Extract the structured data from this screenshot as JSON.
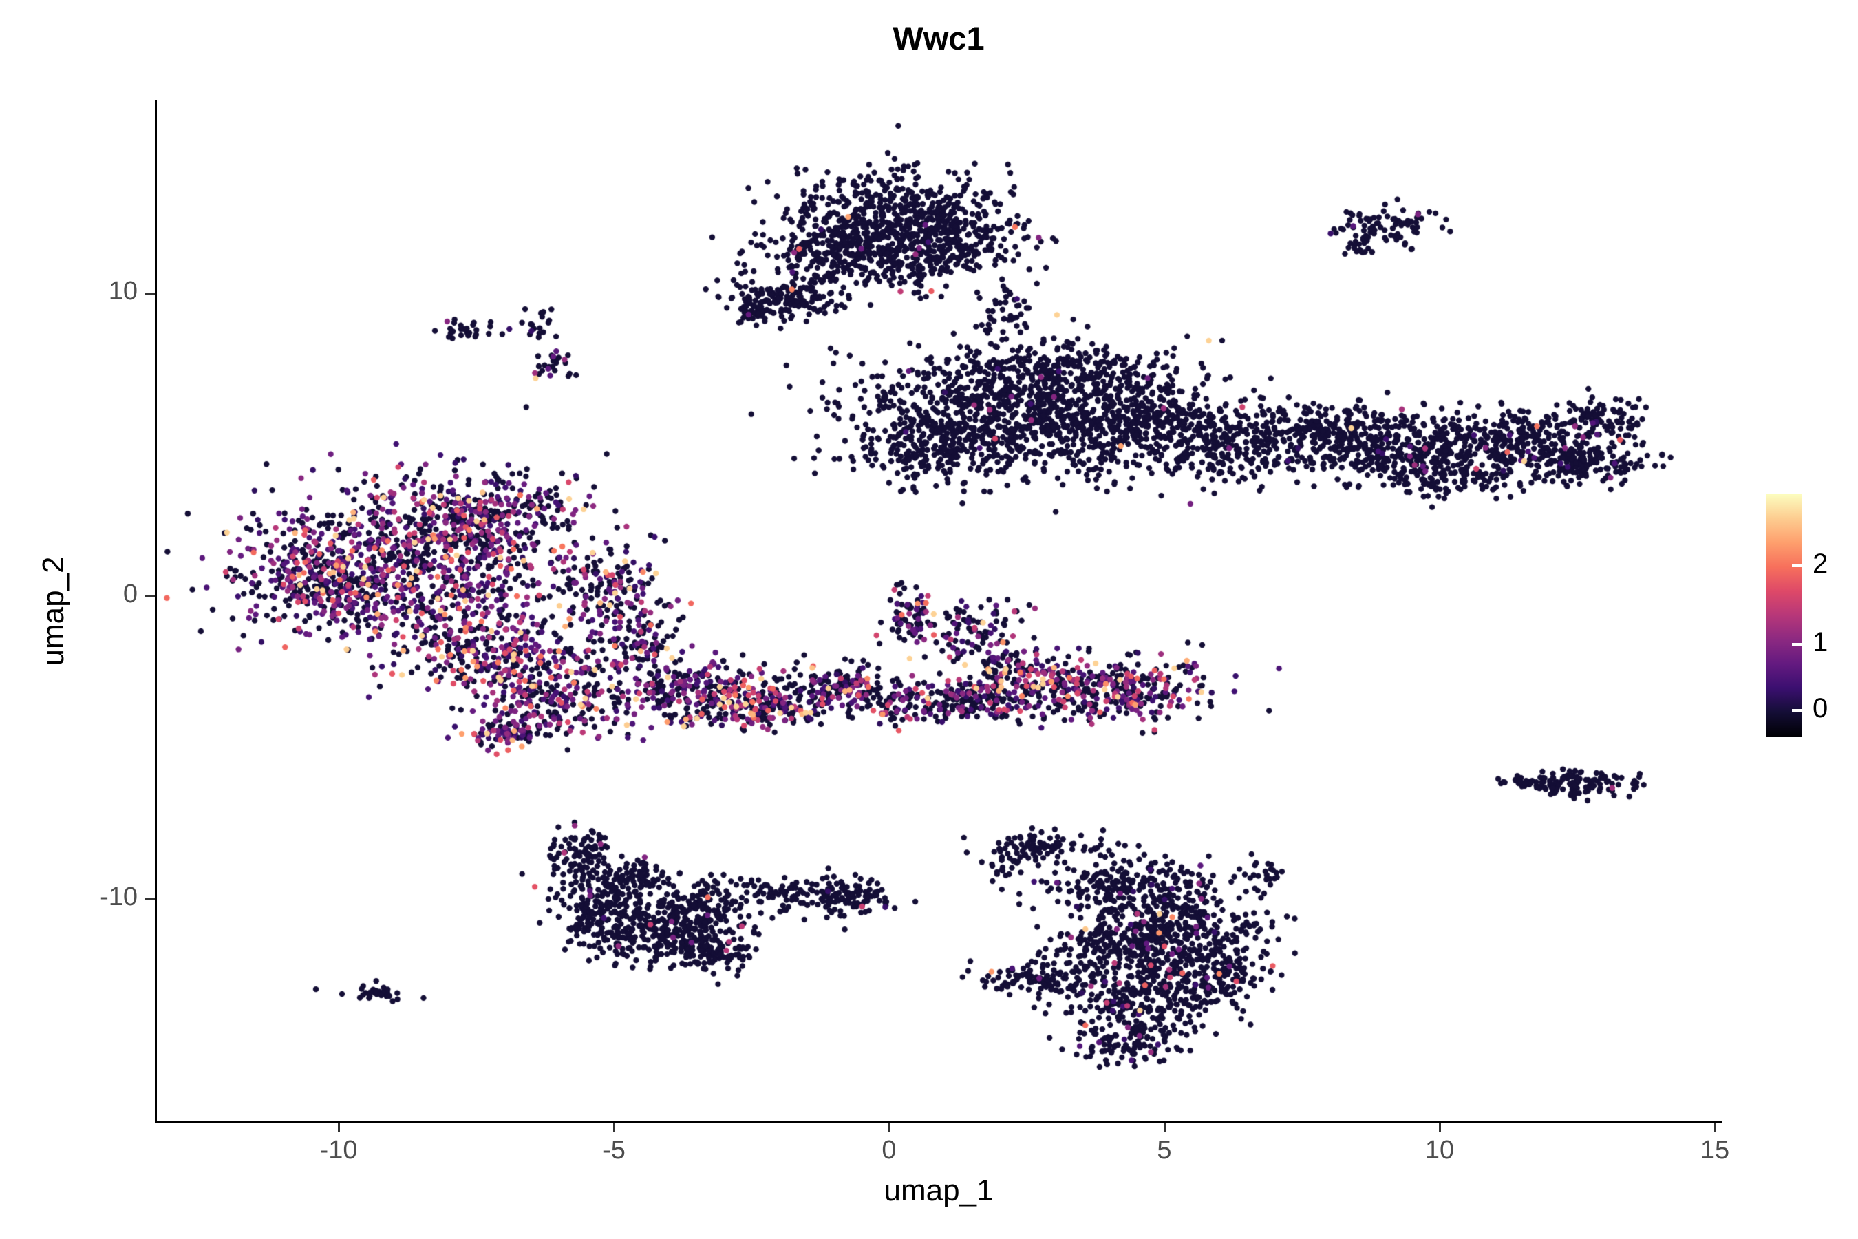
{
  "chart_data": {
    "type": "scatter",
    "title": "Wwc1",
    "xlabel": "umap_1",
    "ylabel": "umap_2",
    "xlim": [
      -13.3,
      15.1
    ],
    "ylim": [
      -17.32,
      16.32
    ],
    "x_ticks": [
      -10,
      -5,
      0,
      5,
      10,
      15
    ],
    "y_ticks": [
      -10,
      0,
      10
    ],
    "grid": false,
    "point_radius_px": 4.2,
    "value_domain": [
      -0.33,
      3.0
    ],
    "colormap": "magma",
    "colormap_stops": [
      "#000004",
      "#140e36",
      "#3b0f70",
      "#641a80",
      "#8c2981",
      "#b73779",
      "#de4968",
      "#f7705c",
      "#fe9f6d",
      "#fdcd90",
      "#fcfdbf"
    ],
    "legend": {
      "position": "right",
      "ticks": [
        2,
        1,
        0
      ],
      "tick_fractions_from_top": [
        0.295,
        0.619,
        0.892
      ]
    },
    "seed": 42,
    "clusters": [
      {
        "x": 0.1,
        "y": 12.6,
        "sx": 1.05,
        "sy": 0.75,
        "n": 480,
        "f": 0.02
      },
      {
        "x": -0.6,
        "y": 11.2,
        "sx": 0.95,
        "sy": 0.65,
        "n": 330,
        "f": 0.02
      },
      {
        "x": 0.9,
        "y": 11.7,
        "sx": 0.75,
        "sy": 0.55,
        "n": 240,
        "f": 0.02
      },
      {
        "x": -1.9,
        "y": 9.8,
        "sx": 0.55,
        "sy": 0.35,
        "n": 150,
        "f": 0.02
      },
      {
        "x": -2.4,
        "y": 9.4,
        "sx": 0.2,
        "sy": 0.2,
        "n": 40,
        "f": 0.02
      },
      {
        "x": 2.1,
        "y": 9.4,
        "sx": 0.25,
        "sy": 0.45,
        "n": 45,
        "f": 0.02
      },
      {
        "x": -7.6,
        "y": 8.8,
        "sx": 0.35,
        "sy": 0.18,
        "n": 28,
        "f": 0.08
      },
      {
        "x": -6.35,
        "y": 8.9,
        "sx": 0.15,
        "sy": 0.22,
        "n": 18,
        "f": 0.08
      },
      {
        "x": -6.1,
        "y": 7.6,
        "sx": 0.22,
        "sy": 0.3,
        "n": 26,
        "f": 0.08
      },
      {
        "x": 9.0,
        "y": 12.2,
        "sx": 0.42,
        "sy": 0.34,
        "n": 85,
        "f": 0.02
      },
      {
        "x": 8.55,
        "y": 11.5,
        "sx": 0.15,
        "sy": 0.12,
        "n": 12,
        "f": 0
      },
      {
        "x": 2.2,
        "y": 6.4,
        "sx": 1.5,
        "sy": 0.95,
        "n": 850,
        "f": 0.012
      },
      {
        "x": 4.4,
        "y": 5.6,
        "sx": 1.15,
        "sy": 0.85,
        "n": 480,
        "f": 0.012
      },
      {
        "x": 1.2,
        "y": 4.9,
        "sx": 0.85,
        "sy": 0.6,
        "n": 280,
        "f": 0.012
      },
      {
        "x": 3.2,
        "y": 7.5,
        "sx": 0.9,
        "sy": 0.35,
        "n": 130,
        "f": 0.012
      },
      {
        "x": 6.7,
        "y": 5.0,
        "sx": 0.8,
        "sy": 0.55,
        "n": 240,
        "f": 0.015
      },
      {
        "x": 8.2,
        "y": 5.6,
        "sx": 0.6,
        "sy": 0.4,
        "n": 150,
        "f": 0.02
      },
      {
        "x": 9.2,
        "y": 4.8,
        "sx": 0.9,
        "sy": 0.55,
        "n": 280,
        "f": 0.02
      },
      {
        "x": 10.3,
        "y": 4.0,
        "sx": 0.7,
        "sy": 0.35,
        "n": 120,
        "f": 0.02
      },
      {
        "x": 11.2,
        "y": 5.2,
        "sx": 0.9,
        "sy": 0.5,
        "n": 280,
        "f": 0.02
      },
      {
        "x": 12.6,
        "y": 4.5,
        "sx": 0.65,
        "sy": 0.4,
        "n": 190,
        "f": 0.03
      },
      {
        "x": 12.9,
        "y": 5.9,
        "sx": 0.4,
        "sy": 0.3,
        "n": 80,
        "f": 0.03
      },
      {
        "x": -8.7,
        "y": 1.3,
        "sx": 1.45,
        "sy": 1.25,
        "n": 850,
        "f": 0.55
      },
      {
        "x": -10.4,
        "y": 0.4,
        "sx": 0.75,
        "sy": 0.85,
        "n": 280,
        "f": 0.5
      },
      {
        "x": -7.0,
        "y": 2.7,
        "sx": 0.85,
        "sy": 0.65,
        "n": 240,
        "f": 0.5
      },
      {
        "x": -7.4,
        "y": -1.7,
        "sx": 0.95,
        "sy": 0.75,
        "n": 330,
        "f": 0.5
      },
      {
        "x": -6.1,
        "y": -3.3,
        "sx": 0.75,
        "sy": 0.65,
        "n": 240,
        "f": 0.52
      },
      {
        "x": -6.9,
        "y": -4.5,
        "sx": 0.4,
        "sy": 0.28,
        "n": 80,
        "f": 0.55
      },
      {
        "x": -5.1,
        "y": 0.3,
        "sx": 0.45,
        "sy": 0.75,
        "n": 140,
        "f": 0.42
      },
      {
        "x": -4.6,
        "y": -1.6,
        "sx": 0.4,
        "sy": 0.7,
        "n": 110,
        "f": 0.42
      },
      {
        "x": -3.6,
        "y": -3.2,
        "sx": 0.75,
        "sy": 0.5,
        "n": 230,
        "f": 0.45
      },
      {
        "x": -2.3,
        "y": -3.6,
        "sx": 0.65,
        "sy": 0.4,
        "n": 190,
        "f": 0.45
      },
      {
        "x": -0.9,
        "y": -3.0,
        "sx": 0.55,
        "sy": 0.4,
        "n": 140,
        "f": 0.4
      },
      {
        "x": 0.3,
        "y": -3.6,
        "sx": 0.5,
        "sy": 0.32,
        "n": 100,
        "f": 0.4
      },
      {
        "x": 1.6,
        "y": -3.3,
        "sx": 0.5,
        "sy": 0.38,
        "n": 110,
        "f": 0.4
      },
      {
        "x": 2.9,
        "y": -3.0,
        "sx": 0.65,
        "sy": 0.5,
        "n": 190,
        "f": 0.45
      },
      {
        "x": 4.3,
        "y": -3.1,
        "sx": 0.8,
        "sy": 0.6,
        "n": 260,
        "f": 0.5
      },
      {
        "x": 0.4,
        "y": -0.7,
        "sx": 0.28,
        "sy": 0.5,
        "n": 75,
        "f": 0.35
      },
      {
        "x": 1.5,
        "y": -1.2,
        "sx": 0.45,
        "sy": 0.5,
        "n": 95,
        "f": 0.35
      },
      {
        "x": 2.1,
        "y": -2.2,
        "sx": 0.3,
        "sy": 0.28,
        "n": 45,
        "f": 0.35
      },
      {
        "x": -5.6,
        "y": -8.6,
        "sx": 0.28,
        "sy": 0.5,
        "n": 95,
        "f": 0.03
      },
      {
        "x": -5.2,
        "y": -10.2,
        "sx": 0.5,
        "sy": 0.7,
        "n": 190,
        "f": 0.03
      },
      {
        "x": -4.3,
        "y": -11.3,
        "sx": 0.65,
        "sy": 0.5,
        "n": 230,
        "f": 0.03
      },
      {
        "x": -3.4,
        "y": -10.4,
        "sx": 0.5,
        "sy": 0.6,
        "n": 200,
        "f": 0.03
      },
      {
        "x": -3.0,
        "y": -11.9,
        "sx": 0.4,
        "sy": 0.3,
        "n": 80,
        "f": 0.03
      },
      {
        "x": -4.6,
        "y": -9.3,
        "sx": 0.3,
        "sy": 0.3,
        "n": 50,
        "f": 0.03
      },
      {
        "x": -1.0,
        "y": -9.9,
        "sx": 0.6,
        "sy": 0.33,
        "n": 150,
        "f": 0.02
      },
      {
        "x": -2.2,
        "y": -9.7,
        "sx": 0.2,
        "sy": 0.15,
        "n": 20,
        "f": 0
      },
      {
        "x": -9.3,
        "y": -13.1,
        "sx": 0.24,
        "sy": 0.12,
        "n": 30,
        "f": 0
      },
      {
        "x": 2.8,
        "y": -8.3,
        "sx": 0.55,
        "sy": 0.25,
        "n": 85,
        "f": 0.02
      },
      {
        "x": 2.1,
        "y": -8.9,
        "sx": 0.15,
        "sy": 0.3,
        "n": 22,
        "f": 0
      },
      {
        "x": 4.4,
        "y": -9.6,
        "sx": 0.85,
        "sy": 0.5,
        "n": 240,
        "f": 0.03
      },
      {
        "x": 5.4,
        "y": -10.8,
        "sx": 0.75,
        "sy": 0.6,
        "n": 260,
        "f": 0.05
      },
      {
        "x": 4.3,
        "y": -11.6,
        "sx": 0.65,
        "sy": 0.5,
        "n": 210,
        "f": 0.05
      },
      {
        "x": 2.7,
        "y": -12.6,
        "sx": 0.65,
        "sy": 0.3,
        "n": 110,
        "f": 0.03
      },
      {
        "x": 4.6,
        "y": -13.3,
        "sx": 0.75,
        "sy": 0.55,
        "n": 260,
        "f": 0.07
      },
      {
        "x": 4.4,
        "y": -14.7,
        "sx": 0.5,
        "sy": 0.38,
        "n": 110,
        "f": 0.06
      },
      {
        "x": 5.9,
        "y": -12.4,
        "sx": 0.5,
        "sy": 0.5,
        "n": 140,
        "f": 0.05
      },
      {
        "x": 6.8,
        "y": -9.1,
        "sx": 0.2,
        "sy": 0.3,
        "n": 22,
        "f": 0
      },
      {
        "x": 12.5,
        "y": -6.2,
        "sx": 0.5,
        "sy": 0.24,
        "n": 125,
        "f": 0.02
      },
      {
        "x": 11.5,
        "y": -6.1,
        "sx": 0.22,
        "sy": 0.1,
        "n": 22,
        "f": 0
      }
    ]
  }
}
